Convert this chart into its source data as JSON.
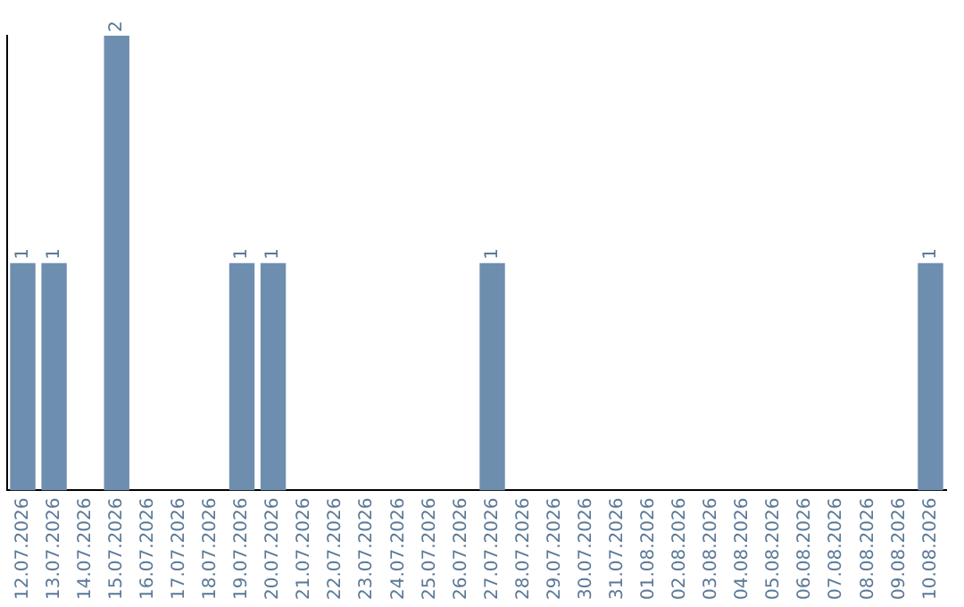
{
  "chart_data": {
    "type": "bar",
    "categories": [
      "12.07.2026",
      "13.07.2026",
      "14.07.2026",
      "15.07.2026",
      "16.07.2026",
      "17.07.2026",
      "18.07.2026",
      "19.07.2026",
      "20.07.2026",
      "21.07.2026",
      "22.07.2026",
      "23.07.2026",
      "24.07.2026",
      "25.07.2026",
      "26.07.2026",
      "27.07.2026",
      "28.07.2026",
      "29.07.2026",
      "30.07.2026",
      "31.07.2026",
      "01.08.2026",
      "02.08.2026",
      "03.08.2026",
      "04.08.2026",
      "05.08.2026",
      "06.08.2026",
      "07.08.2026",
      "08.08.2026",
      "09.08.2026",
      "10.08.2026"
    ],
    "values": [
      1,
      1,
      0,
      2,
      0,
      0,
      0,
      1,
      1,
      0,
      0,
      0,
      0,
      0,
      0,
      1,
      0,
      0,
      0,
      0,
      0,
      0,
      0,
      0,
      0,
      0,
      0,
      0,
      0,
      1
    ],
    "value_labels": [
      "1",
      "1",
      null,
      "2",
      null,
      null,
      null,
      "1",
      "1",
      null,
      null,
      null,
      null,
      null,
      null,
      "1",
      null,
      null,
      null,
      null,
      null,
      null,
      null,
      null,
      null,
      null,
      null,
      null,
      null,
      "1"
    ],
    "color": "#6e8eaf",
    "ylim": [
      0,
      2
    ],
    "grid": false,
    "legend": false,
    "tick_labels": "x"
  }
}
